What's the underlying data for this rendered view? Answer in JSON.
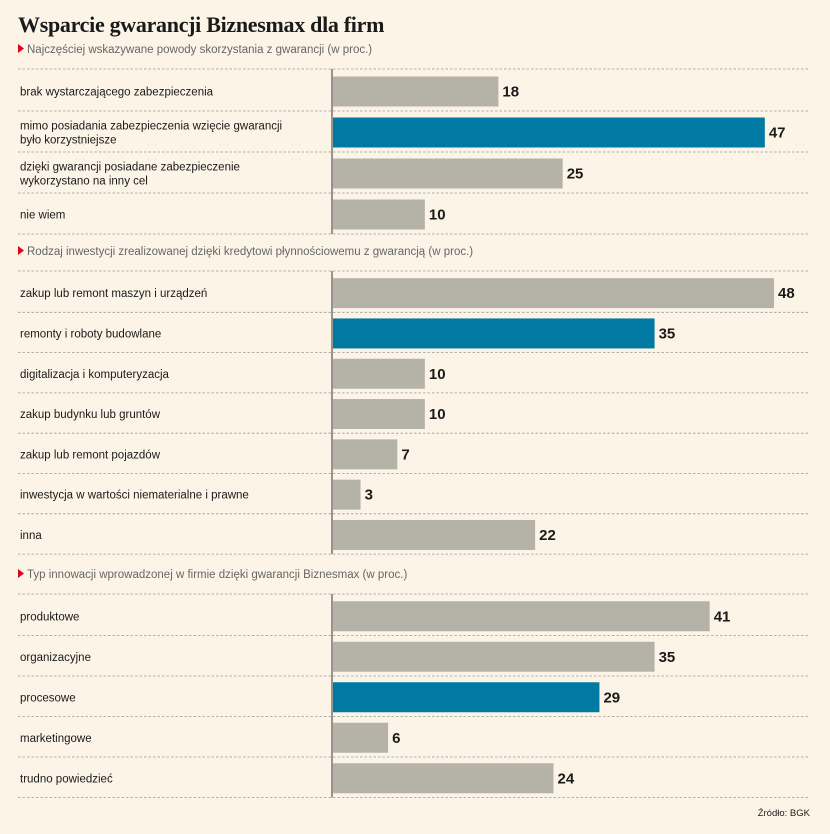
{
  "title": "Wsparcie gwarancji Biznesmax dla firm",
  "source": "Źródło: BGK",
  "colors": {
    "background": "#fcf5e7",
    "bar_default": "#b5b3a8",
    "bar_highlight": "#0079a3",
    "marker": "#e2001a",
    "divider": "#9a9a9a"
  },
  "chart_data": [
    {
      "type": "bar",
      "orientation": "horizontal",
      "title": "Najczęściej wskazywane powody skorzystania z gwarancji (w proc.)",
      "categories": [
        [
          "brak wystarczającego zabezpieczenia"
        ],
        [
          "mimo posiadania zabezpieczenia wzięcie gwarancji",
          "było korzystniejsze"
        ],
        [
          "dzięki gwarancji posiadane zabezpieczenie",
          "wykorzystano na inny cel"
        ],
        [
          "nie wiem"
        ]
      ],
      "values": [
        18,
        47,
        25,
        10
      ],
      "highlight_index": 1
    },
    {
      "type": "bar",
      "orientation": "horizontal",
      "title": "Rodzaj inwestycji zrealizowanej dzięki kredytowi płynnościowemu z gwarancją (w proc.)",
      "categories": [
        [
          "zakup lub remont maszyn i urządzeń"
        ],
        [
          "remonty i roboty budowlane"
        ],
        [
          "digitalizacja i komputeryzacja"
        ],
        [
          "zakup budynku lub gruntów"
        ],
        [
          "zakup lub remont pojazdów"
        ],
        [
          "inwestycja w wartości niematerialne i prawne"
        ],
        [
          "inna"
        ]
      ],
      "values": [
        48,
        35,
        10,
        10,
        7,
        3,
        22
      ],
      "highlight_index": 1
    },
    {
      "type": "bar",
      "orientation": "horizontal",
      "title": "Typ innowacji wprowadzonej w firmie dzięki gwarancji Biznesmax (w proc.)",
      "categories": [
        [
          "produktowe"
        ],
        [
          "organizacyjne"
        ],
        [
          "procesowe"
        ],
        [
          "marketingowe"
        ],
        [
          "trudno powiedzieć"
        ]
      ],
      "values": [
        41,
        35,
        29,
        6,
        24
      ],
      "highlight_index": 2
    }
  ]
}
